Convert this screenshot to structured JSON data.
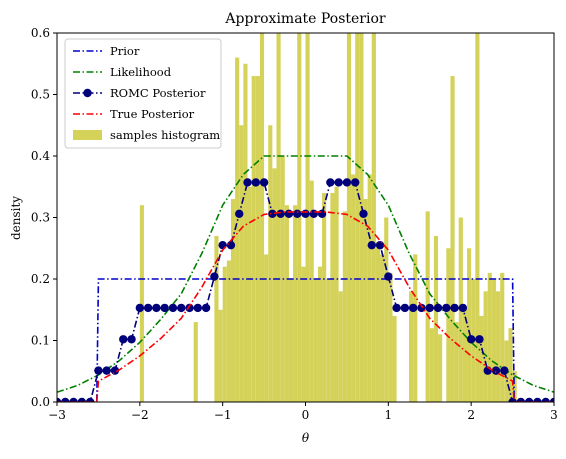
{
  "chart_data": {
    "type": "line",
    "title": "Approximate Posterior",
    "xlabel": "θ",
    "ylabel": "density",
    "xlim": [
      -3,
      3
    ],
    "ylim": [
      0,
      0.6
    ],
    "x_ticks": [
      -3,
      -2,
      -1,
      0,
      1,
      2,
      3
    ],
    "x_tick_labels": [
      "−3",
      "−2",
      "−1",
      "0",
      "1",
      "2",
      "3"
    ],
    "y_ticks": [
      0.0,
      0.1,
      0.2,
      0.3,
      0.4,
      0.5,
      0.6
    ],
    "y_tick_labels": [
      "0.0",
      "0.1",
      "0.2",
      "0.3",
      "0.4",
      "0.5",
      "0.6"
    ],
    "grid": false,
    "legend_position": "top-left",
    "legend": [
      "Prior",
      "Likelihood",
      "ROMC Posterior",
      "True Posterior",
      "samples histogram"
    ],
    "series": [
      {
        "name": "Prior",
        "color": "#0000cc",
        "style": "dash-dot",
        "x": [
          -3.0,
          -2.52,
          -2.5,
          2.5,
          2.52,
          3.0
        ],
        "y": [
          0.0,
          0.0,
          0.2,
          0.2,
          0.0,
          0.0
        ]
      },
      {
        "name": "Likelihood",
        "color": "#008000",
        "style": "dash-dot",
        "x": [
          -3.0,
          -2.75,
          -2.5,
          -2.25,
          -2.0,
          -1.75,
          -1.5,
          -1.25,
          -1.0,
          -0.75,
          -0.5,
          -0.25,
          0.0,
          0.25,
          0.5,
          0.75,
          1.0,
          1.25,
          1.5,
          1.75,
          2.0,
          2.25,
          2.5,
          2.75,
          3.0
        ],
        "y": [
          0.016,
          0.027,
          0.044,
          0.067,
          0.097,
          0.134,
          0.176,
          0.242,
          0.32,
          0.37,
          0.4,
          0.4,
          0.4,
          0.4,
          0.4,
          0.37,
          0.32,
          0.242,
          0.176,
          0.134,
          0.097,
          0.067,
          0.044,
          0.027,
          0.016
        ]
      },
      {
        "name": "ROMC Posterior",
        "color": "#00007a",
        "style": "dash-dot-marker",
        "x": [
          -3.0,
          -2.9,
          -2.8,
          -2.7,
          -2.6,
          -2.5,
          -2.4,
          -2.3,
          -2.2,
          -2.1,
          -2.0,
          -1.9,
          -1.8,
          -1.7,
          -1.6,
          -1.5,
          -1.4,
          -1.3,
          -1.2,
          -1.1,
          -1.0,
          -0.9,
          -0.8,
          -0.7,
          -0.6,
          -0.5,
          -0.4,
          -0.3,
          -0.2,
          -0.1,
          0.0,
          0.1,
          0.2,
          0.3,
          0.4,
          0.5,
          0.6,
          0.7,
          0.8,
          0.9,
          1.0,
          1.1,
          1.2,
          1.3,
          1.4,
          1.5,
          1.6,
          1.7,
          1.8,
          1.9,
          2.0,
          2.1,
          2.2,
          2.3,
          2.4,
          2.5,
          2.6,
          2.7,
          2.8,
          2.9,
          3.0
        ],
        "y": [
          0.0,
          0.0,
          0.0,
          0.0,
          0.0,
          0.051,
          0.051,
          0.051,
          0.102,
          0.102,
          0.153,
          0.153,
          0.153,
          0.153,
          0.153,
          0.153,
          0.153,
          0.153,
          0.153,
          0.204,
          0.255,
          0.255,
          0.306,
          0.357,
          0.357,
          0.357,
          0.306,
          0.306,
          0.306,
          0.306,
          0.306,
          0.306,
          0.306,
          0.357,
          0.357,
          0.357,
          0.357,
          0.306,
          0.255,
          0.255,
          0.204,
          0.153,
          0.153,
          0.153,
          0.153,
          0.153,
          0.153,
          0.153,
          0.153,
          0.153,
          0.102,
          0.102,
          0.051,
          0.051,
          0.051,
          0.0,
          0.0,
          0.0,
          0.0,
          0.0,
          0.0
        ]
      },
      {
        "name": "True Posterior",
        "color": "#ff0000",
        "style": "dash-dot",
        "x": [
          -3.0,
          -2.52,
          -2.5,
          -2.25,
          -2.0,
          -1.75,
          -1.5,
          -1.25,
          -1.0,
          -0.75,
          -0.5,
          -0.25,
          0.0,
          0.25,
          0.5,
          0.75,
          1.0,
          1.25,
          1.5,
          1.75,
          2.0,
          2.25,
          2.5,
          2.52,
          3.0
        ],
        "y": [
          0.0,
          0.0,
          0.034,
          0.052,
          0.075,
          0.103,
          0.136,
          0.187,
          0.247,
          0.286,
          0.305,
          0.309,
          0.309,
          0.309,
          0.305,
          0.286,
          0.247,
          0.187,
          0.136,
          0.103,
          0.075,
          0.052,
          0.034,
          0.0,
          0.0
        ]
      }
    ],
    "histogram": {
      "name": "samples histogram",
      "color": "#d5d25a",
      "bin_width": 0.05,
      "bins": [
        [
          -2.0,
          0.32
        ],
        [
          -1.35,
          0.13
        ],
        [
          -1.1,
          0.27
        ],
        [
          -1.05,
          0.15
        ],
        [
          -1.0,
          0.22
        ],
        [
          -0.95,
          0.23
        ],
        [
          -0.9,
          0.33
        ],
        [
          -0.85,
          0.56
        ],
        [
          -0.8,
          0.45
        ],
        [
          -0.75,
          0.55
        ],
        [
          -0.7,
          0.35
        ],
        [
          -0.65,
          0.53
        ],
        [
          -0.6,
          0.53
        ],
        [
          -0.55,
          0.6
        ],
        [
          -0.5,
          0.24
        ],
        [
          -0.45,
          0.45
        ],
        [
          -0.4,
          0.38
        ],
        [
          -0.35,
          0.6
        ],
        [
          -0.3,
          0.4
        ],
        [
          -0.25,
          0.32
        ],
        [
          -0.2,
          0.2
        ],
        [
          -0.15,
          0.32
        ],
        [
          -0.1,
          0.6
        ],
        [
          -0.05,
          0.22
        ],
        [
          0.0,
          0.6
        ],
        [
          0.05,
          0.36
        ],
        [
          0.1,
          0.2
        ],
        [
          0.15,
          0.22
        ],
        [
          0.2,
          0.34
        ],
        [
          0.25,
          0.2
        ],
        [
          0.3,
          0.34
        ],
        [
          0.35,
          0.35
        ],
        [
          0.4,
          0.18
        ],
        [
          0.45,
          0.31
        ],
        [
          0.5,
          0.6
        ],
        [
          0.55,
          0.37
        ],
        [
          0.6,
          0.6
        ],
        [
          0.65,
          0.6
        ],
        [
          0.7,
          0.33
        ],
        [
          0.75,
          0.37
        ],
        [
          0.8,
          0.6
        ],
        [
          0.85,
          0.26
        ],
        [
          0.9,
          0.24
        ],
        [
          0.95,
          0.3
        ],
        [
          1.0,
          0.21
        ],
        [
          1.05,
          0.14
        ],
        [
          1.25,
          0.18
        ],
        [
          1.3,
          0.24
        ],
        [
          1.45,
          0.31
        ],
        [
          1.5,
          0.12
        ],
        [
          1.55,
          0.27
        ],
        [
          1.6,
          0.11
        ],
        [
          1.7,
          0.25
        ],
        [
          1.75,
          0.53
        ],
        [
          1.8,
          0.13
        ],
        [
          1.85,
          0.3
        ],
        [
          1.9,
          0.15
        ],
        [
          1.95,
          0.25
        ],
        [
          2.0,
          0.2
        ],
        [
          2.05,
          0.6
        ],
        [
          2.1,
          0.14
        ],
        [
          2.15,
          0.18
        ],
        [
          2.2,
          0.21
        ],
        [
          2.25,
          0.2
        ],
        [
          2.3,
          0.18
        ],
        [
          2.35,
          0.21
        ],
        [
          2.4,
          0.1
        ],
        [
          2.45,
          0.12
        ],
        [
          2.5,
          0.05
        ]
      ]
    }
  }
}
